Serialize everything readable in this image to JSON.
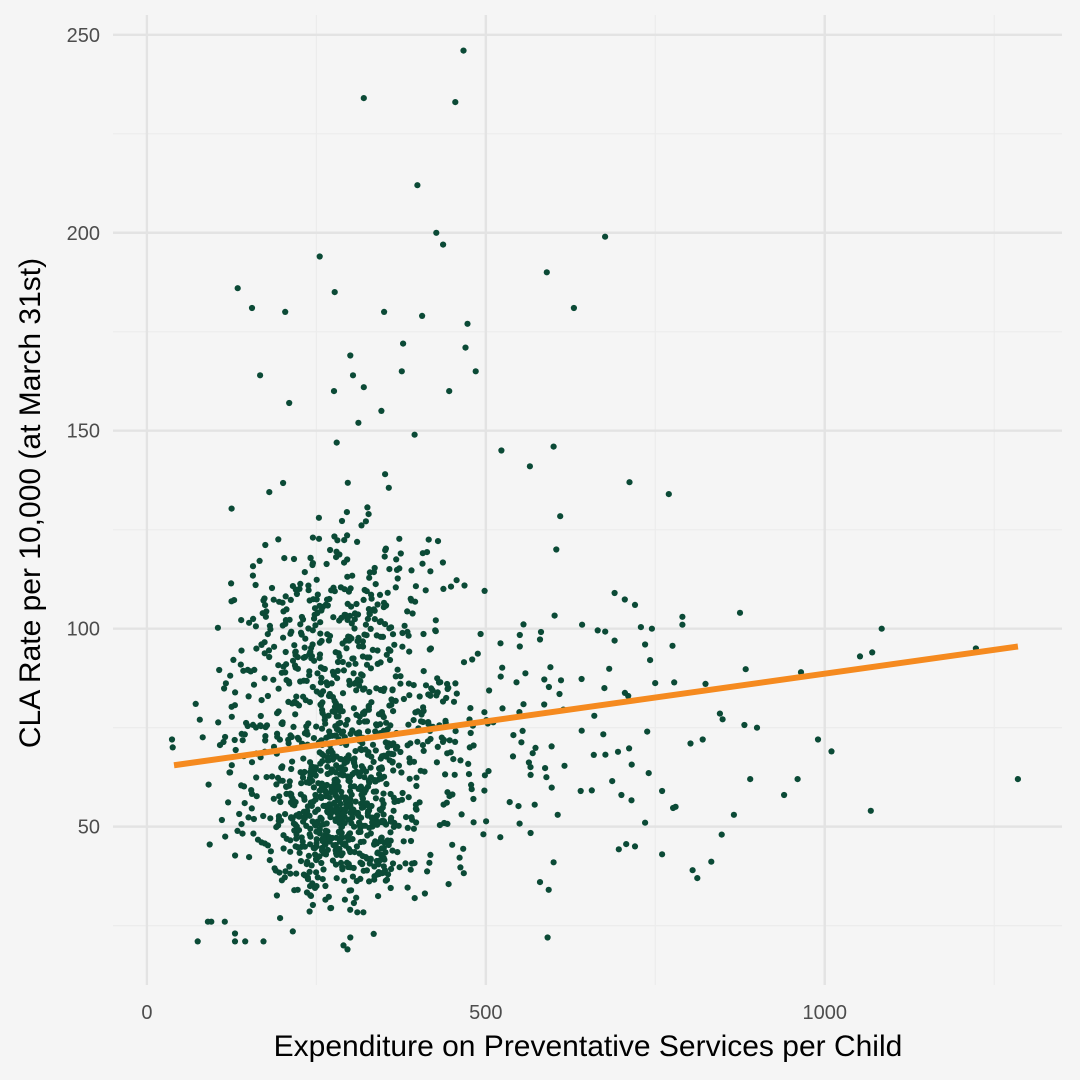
{
  "colors": {
    "background": "#f5f5f5",
    "grid_major": "#e3e3e3",
    "grid_minor": "#ececec",
    "points": "#0b4a36",
    "trend_line": "#f58a1f"
  },
  "chart_data": {
    "type": "scatter",
    "title": "",
    "xlabel": "Expenditure on Preventative Services per Child",
    "ylabel": "CLA Rate per 10,000 (at March 31st)",
    "xlim": [
      -50,
      1350
    ],
    "ylim": [
      10,
      255
    ],
    "x_ticks": [
      0,
      500,
      1000
    ],
    "x_tick_labels": [
      "0",
      "500",
      "1000"
    ],
    "y_ticks": [
      50,
      100,
      150,
      200,
      250
    ],
    "y_tick_labels": [
      "50",
      "100",
      "150",
      "200",
      "250"
    ],
    "x_minor_ticks": [
      250,
      750,
      1250
    ],
    "y_minor_ticks": [
      25,
      75,
      125,
      175,
      225
    ],
    "grid": true,
    "legend": "none",
    "trend_line": {
      "x": [
        40,
        1285
      ],
      "y": [
        65.5,
        95.5
      ]
    },
    "point_generation": {
      "seed": 20240611,
      "clusters": [
        {
          "count": 560,
          "x_mean": 285,
          "x_sd": 60,
          "y_mean": 52,
          "y_sd": 11,
          "y_min": 20
        },
        {
          "count": 520,
          "x_mean": 290,
          "x_sd": 90,
          "y_mean": 82,
          "y_sd": 16
        },
        {
          "count": 130,
          "x_mean": 280,
          "x_sd": 70,
          "y_mean": 110,
          "y_sd": 12
        },
        {
          "count": 80,
          "x_mean": 450,
          "x_sd": 100,
          "y_mean": 70,
          "y_sd": 20
        },
        {
          "count": 60,
          "x_mean": 650,
          "x_sd": 120,
          "y_mean": 72,
          "y_sd": 18
        }
      ]
    },
    "points": [
      [
        467,
        246
      ],
      [
        320,
        234
      ],
      [
        455,
        233
      ],
      [
        399,
        212
      ],
      [
        427,
        200
      ],
      [
        437,
        197
      ],
      [
        676,
        199
      ],
      [
        255,
        194
      ],
      [
        590,
        190
      ],
      [
        277,
        185
      ],
      [
        134,
        186
      ],
      [
        155,
        181
      ],
      [
        204,
        180
      ],
      [
        350,
        180
      ],
      [
        630,
        181
      ],
      [
        406,
        179
      ],
      [
        473,
        177
      ],
      [
        378,
        172
      ],
      [
        300,
        169
      ],
      [
        470,
        171
      ],
      [
        485,
        165
      ],
      [
        167,
        164
      ],
      [
        376,
        165
      ],
      [
        304,
        164
      ],
      [
        446,
        160
      ],
      [
        320,
        161
      ],
      [
        276,
        160
      ],
      [
        210,
        157
      ],
      [
        346,
        155
      ],
      [
        395,
        149
      ],
      [
        312,
        152
      ],
      [
        280,
        147
      ],
      [
        600,
        146
      ],
      [
        523,
        145
      ],
      [
        565,
        141
      ],
      [
        712,
        137
      ],
      [
        770,
        134
      ],
      [
        604,
        120
      ],
      [
        720,
        106
      ],
      [
        875,
        104
      ],
      [
        1084,
        100
      ],
      [
        1052,
        93
      ],
      [
        1070,
        94
      ],
      [
        965,
        89
      ],
      [
        1223,
        95
      ],
      [
        1285,
        62
      ],
      [
        1068,
        54
      ],
      [
        1010,
        69
      ],
      [
        990,
        72
      ],
      [
        960,
        62
      ],
      [
        940,
        58
      ],
      [
        900,
        75
      ],
      [
        890,
        62
      ],
      [
        866,
        53
      ],
      [
        848,
        48
      ],
      [
        820,
        72
      ],
      [
        802,
        71
      ],
      [
        805,
        39
      ],
      [
        812,
        37
      ],
      [
        780,
        55
      ],
      [
        760,
        43
      ],
      [
        735,
        51
      ],
      [
        720,
        45
      ],
      [
        760,
        59
      ],
      [
        700,
        58
      ],
      [
        738,
        74
      ],
      [
        790,
        101
      ],
      [
        790,
        103
      ],
      [
        745,
        100
      ],
      [
        735,
        96
      ],
      [
        690,
        97
      ],
      [
        710,
        83
      ],
      [
        675,
        85
      ],
      [
        660,
        78
      ],
      [
        690,
        109
      ],
      [
        642,
        101
      ],
      [
        640,
        59
      ],
      [
        606,
        53
      ],
      [
        600,
        41
      ],
      [
        580,
        36
      ],
      [
        37,
        72
      ],
      [
        38,
        70
      ],
      [
        72,
        81
      ],
      [
        78,
        77
      ],
      [
        90,
        26
      ],
      [
        95,
        26
      ],
      [
        75,
        21
      ],
      [
        115,
        26
      ],
      [
        130,
        23
      ],
      [
        130,
        21
      ],
      [
        145,
        21
      ],
      [
        172,
        21
      ],
      [
        290,
        20
      ],
      [
        300,
        22
      ],
      [
        296,
        19
      ]
    ]
  }
}
